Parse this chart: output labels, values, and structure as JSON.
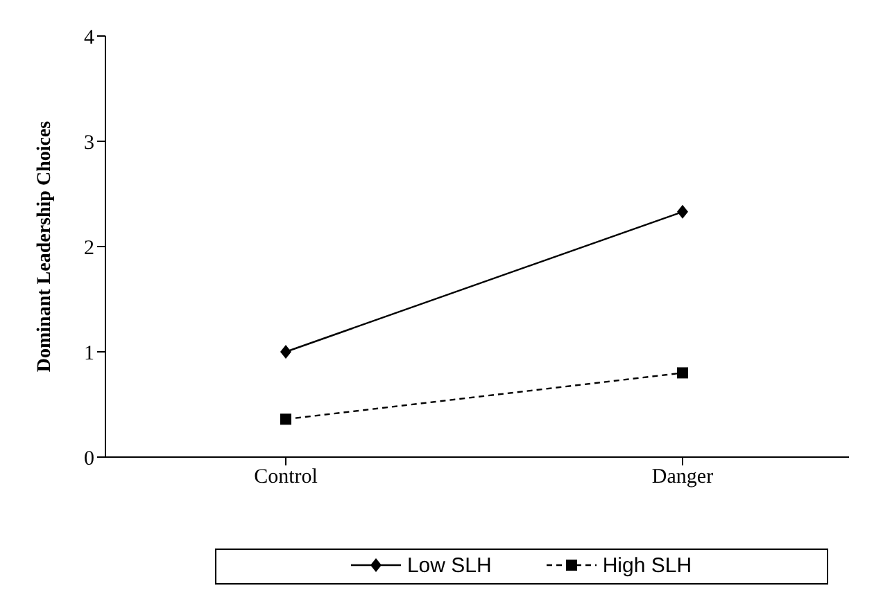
{
  "chart_data": {
    "type": "line",
    "ylabel": "Dominant Leadership Choices",
    "categories": [
      "Control",
      "Danger"
    ],
    "series": [
      {
        "name": "Low SLH",
        "color": "#000000",
        "values": [
          1.0,
          2.33
        ],
        "marker": "diamond",
        "line_style": "solid"
      },
      {
        "name": "High SLH",
        "color": "#000000",
        "values": [
          0.36,
          0.8
        ],
        "marker": "square",
        "line_style": "dashed"
      }
    ],
    "ylim": [
      0,
      4
    ],
    "yticks": [
      0,
      1,
      2,
      3,
      4
    ],
    "grid": false,
    "legend": "bottom"
  }
}
